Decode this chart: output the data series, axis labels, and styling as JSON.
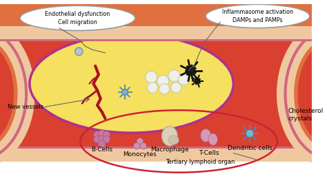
{
  "bg_color": "#ffffff",
  "artery_orange": "#e07040",
  "artery_skin": "#f0c8a0",
  "artery_pink_line": "#d06880",
  "lumen_red": "#d94030",
  "plaque_yellow": "#f5e060",
  "plaque_border": "#b03090",
  "vessel_red": "#aa1122",
  "bubble_border": "#999999",
  "tlo_red": "#cc2233",
  "pointer_color": "#666666",
  "label_endothelial": "Endothelial dysfunction\nCell migration",
  "label_inflammasome": "Inflammasome activation\nDAMPs and PAMPs",
  "label_new_vessels": "New vessels",
  "label_bcells": "B-Cells",
  "label_monocytes": "Monocytes",
  "label_macrophage": "Macrophage",
  "label_tcells": "T-Cells",
  "label_dendritic": "Dendritic cells",
  "label_cholesterol": "Cholesterol\ncrystals",
  "label_tertiary": "Tertiary lymphoid organ",
  "fs": 6.5,
  "fs_sm": 5.8
}
